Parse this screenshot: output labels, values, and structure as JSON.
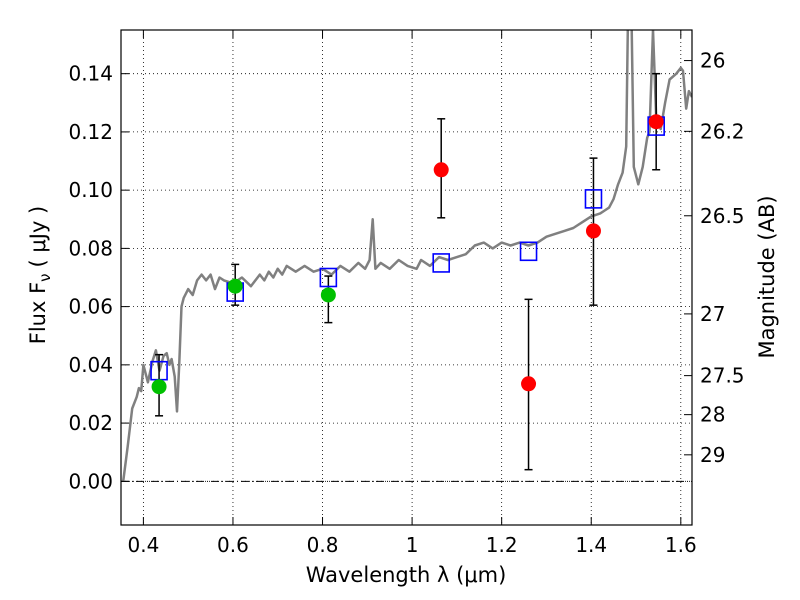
{
  "chart_data": {
    "type": "scatter",
    "xlabel": "Wavelength  λ (μm)",
    "ylabel": "Flux  F",
    "ylabel_sub": "ν",
    "ylabel_unit": "( μJy )",
    "right_ylabel": "Magnitude (AB)",
    "xlim": [
      0.35,
      1.625
    ],
    "ylim": [
      -0.015,
      0.155
    ],
    "x_ticks": [
      0.4,
      0.6,
      0.8,
      1.0,
      1.2,
      1.4,
      1.6
    ],
    "x_tick_labels": [
      "0.4",
      "0.6",
      "0.8",
      "1",
      "1.2",
      "1.4",
      "1.6"
    ],
    "y_ticks": [
      0.0,
      0.02,
      0.04,
      0.06,
      0.08,
      0.1,
      0.12,
      0.14
    ],
    "y_tick_labels": [
      "0.00",
      "0.02",
      "0.04",
      "0.06",
      "0.08",
      "0.10",
      "0.12",
      "0.14"
    ],
    "right_ticks": [
      {
        "flux": 0.1445,
        "label": "26"
      },
      {
        "flux": 0.1202,
        "label": "26.2"
      },
      {
        "flux": 0.0912,
        "label": "26.5"
      },
      {
        "flux": 0.0575,
        "label": "27"
      },
      {
        "flux": 0.0363,
        "label": "27.5"
      },
      {
        "flux": 0.0229,
        "label": "28"
      },
      {
        "flux": 0.0091,
        "label": "29"
      }
    ],
    "grid": true,
    "colors": {
      "spectrum": "#808080",
      "model": "#0000ff",
      "green": "#00c000",
      "red": "#ff0000",
      "errorbar": "#000000"
    },
    "spectrum": [
      [
        0.355,
        0.0
      ],
      [
        0.365,
        0.012
      ],
      [
        0.375,
        0.025
      ],
      [
        0.385,
        0.029
      ],
      [
        0.39,
        0.032
      ],
      [
        0.395,
        0.031
      ],
      [
        0.4,
        0.04
      ],
      [
        0.41,
        0.034
      ],
      [
        0.42,
        0.041
      ],
      [
        0.428,
        0.045
      ],
      [
        0.436,
        0.038
      ],
      [
        0.445,
        0.043
      ],
      [
        0.452,
        0.044
      ],
      [
        0.458,
        0.04
      ],
      [
        0.463,
        0.042
      ],
      [
        0.47,
        0.036
      ],
      [
        0.475,
        0.024
      ],
      [
        0.48,
        0.04
      ],
      [
        0.485,
        0.06
      ],
      [
        0.49,
        0.063
      ],
      [
        0.5,
        0.066
      ],
      [
        0.51,
        0.064
      ],
      [
        0.52,
        0.069
      ],
      [
        0.53,
        0.071
      ],
      [
        0.54,
        0.069
      ],
      [
        0.55,
        0.071
      ],
      [
        0.56,
        0.066
      ],
      [
        0.57,
        0.07
      ],
      [
        0.58,
        0.069
      ],
      [
        0.6,
        0.068
      ],
      [
        0.62,
        0.07
      ],
      [
        0.64,
        0.067
      ],
      [
        0.66,
        0.071
      ],
      [
        0.67,
        0.069
      ],
      [
        0.68,
        0.072
      ],
      [
        0.69,
        0.07
      ],
      [
        0.7,
        0.073
      ],
      [
        0.71,
        0.071
      ],
      [
        0.72,
        0.074
      ],
      [
        0.74,
        0.072
      ],
      [
        0.76,
        0.074
      ],
      [
        0.78,
        0.072
      ],
      [
        0.8,
        0.073
      ],
      [
        0.82,
        0.071
      ],
      [
        0.84,
        0.074
      ],
      [
        0.86,
        0.072
      ],
      [
        0.88,
        0.075
      ],
      [
        0.895,
        0.073
      ],
      [
        0.905,
        0.076
      ],
      [
        0.912,
        0.09
      ],
      [
        0.918,
        0.073
      ],
      [
        0.93,
        0.075
      ],
      [
        0.95,
        0.073
      ],
      [
        0.97,
        0.076
      ],
      [
        0.99,
        0.074
      ],
      [
        1.01,
        0.073
      ],
      [
        1.02,
        0.076
      ],
      [
        1.04,
        0.074
      ],
      [
        1.06,
        0.077
      ],
      [
        1.08,
        0.076
      ],
      [
        1.1,
        0.077
      ],
      [
        1.12,
        0.078
      ],
      [
        1.14,
        0.081
      ],
      [
        1.16,
        0.082
      ],
      [
        1.18,
        0.08
      ],
      [
        1.2,
        0.082
      ],
      [
        1.22,
        0.081
      ],
      [
        1.24,
        0.082
      ],
      [
        1.26,
        0.081
      ],
      [
        1.28,
        0.082
      ],
      [
        1.3,
        0.084
      ],
      [
        1.32,
        0.085
      ],
      [
        1.34,
        0.086
      ],
      [
        1.36,
        0.087
      ],
      [
        1.38,
        0.089
      ],
      [
        1.4,
        0.091
      ],
      [
        1.42,
        0.092
      ],
      [
        1.43,
        0.093
      ],
      [
        1.44,
        0.094
      ],
      [
        1.45,
        0.097
      ],
      [
        1.46,
        0.102
      ],
      [
        1.47,
        0.106
      ],
      [
        1.478,
        0.115
      ],
      [
        1.482,
        0.16
      ],
      [
        1.49,
        0.16
      ],
      [
        1.495,
        0.108
      ],
      [
        1.505,
        0.102
      ],
      [
        1.515,
        0.108
      ],
      [
        1.525,
        0.118
      ],
      [
        1.53,
        0.12
      ],
      [
        1.538,
        0.155
      ],
      [
        1.545,
        0.125
      ],
      [
        1.555,
        0.121
      ],
      [
        1.565,
        0.13
      ],
      [
        1.575,
        0.138
      ],
      [
        1.59,
        0.14
      ],
      [
        1.6,
        0.142
      ],
      [
        1.605,
        0.141
      ],
      [
        1.612,
        0.128
      ],
      [
        1.618,
        0.134
      ],
      [
        1.625,
        0.132
      ]
    ],
    "model_points": [
      {
        "x": 0.435,
        "y": 0.038
      },
      {
        "x": 0.605,
        "y": 0.065
      },
      {
        "x": 0.813,
        "y": 0.07
      },
      {
        "x": 1.065,
        "y": 0.075
      },
      {
        "x": 1.26,
        "y": 0.079
      },
      {
        "x": 1.405,
        "y": 0.097
      },
      {
        "x": 1.545,
        "y": 0.122
      }
    ],
    "green_points": [
      {
        "x": 0.435,
        "y": 0.0325,
        "yerr_low": 0.0225,
        "yerr_high": 0.0435
      },
      {
        "x": 0.605,
        "y": 0.067,
        "yerr_low": 0.0605,
        "yerr_high": 0.0745
      },
      {
        "x": 0.813,
        "y": 0.064,
        "yerr_low": 0.0545,
        "yerr_high": 0.0705
      }
    ],
    "red_points": [
      {
        "x": 1.065,
        "y": 0.107,
        "yerr_low": 0.0905,
        "yerr_high": 0.1245
      },
      {
        "x": 1.26,
        "y": 0.0335,
        "yerr_low": 0.004,
        "yerr_high": 0.0625
      },
      {
        "x": 1.405,
        "y": 0.086,
        "yerr_low": 0.0605,
        "yerr_high": 0.111
      },
      {
        "x": 1.545,
        "y": 0.1235,
        "yerr_low": 0.107,
        "yerr_high": 0.14
      }
    ]
  }
}
